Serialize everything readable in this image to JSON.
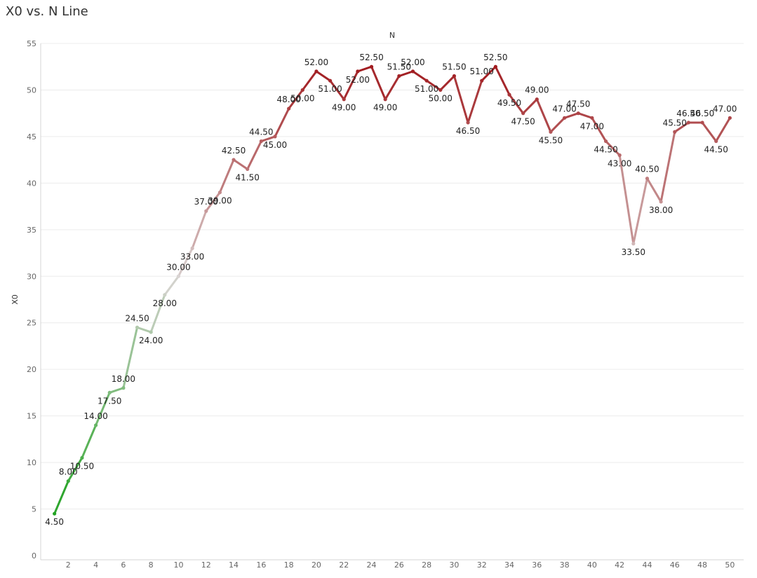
{
  "chart_data": {
    "type": "line",
    "title": "X0 vs. N Line",
    "xlabel": "N",
    "ylabel": "X0",
    "x": [
      1,
      2,
      3,
      4,
      5,
      6,
      7,
      8,
      9,
      10,
      11,
      12,
      13,
      14,
      15,
      16,
      17,
      18,
      19,
      20,
      21,
      22,
      23,
      24,
      25,
      26,
      27,
      28,
      29,
      30,
      31,
      32,
      33,
      34,
      35,
      36,
      37,
      38,
      39,
      40,
      41,
      42,
      43,
      44,
      45,
      46,
      47,
      48,
      49,
      50
    ],
    "series": [
      {
        "values": [
          4.5,
          8.0,
          10.5,
          14.0,
          17.5,
          18.0,
          24.5,
          24.0,
          28.0,
          30.0,
          33.0,
          37.0,
          39.0,
          42.5,
          41.5,
          44.5,
          45.0,
          48.0,
          50.0,
          52.0,
          51.0,
          49.0,
          52.0,
          52.5,
          49.0,
          51.5,
          52.0,
          51.0,
          50.0,
          51.5,
          46.5,
          51.0,
          52.5,
          49.5,
          47.5,
          49.0,
          45.5,
          47.0,
          47.5,
          47.0,
          44.5,
          43.0,
          33.5,
          40.5,
          38.0,
          45.5,
          46.5,
          46.5,
          44.5,
          47.0
        ],
        "data_labels": [
          "4.50",
          "8.00",
          "10.50",
          "14.00",
          "17.50",
          "18.00",
          "24.50",
          "24.00",
          "28.00",
          "30.00",
          "33.00",
          "37.00",
          "39.00",
          "42.50",
          "41.50",
          "44.50",
          "45.00",
          "48.00",
          "50.00",
          "52.00",
          "51.00",
          "49.00",
          "52.00",
          "52.50",
          "49.00",
          "51.50",
          "52.00",
          "51.00",
          "50.00",
          "51.50",
          "46.50",
          "51.00",
          "52.50",
          "49.50",
          "47.50",
          "49.00",
          "45.50",
          "47.00",
          "47.50",
          "47.00",
          "44.50",
          "43.00",
          "33.50",
          "40.50",
          "38.00",
          "45.50",
          "46.50",
          "46.50",
          "44.50",
          "47.00"
        ]
      }
    ],
    "xlim": [
      0,
      51
    ],
    "ylim": [
      0,
      55
    ],
    "x_ticks": [
      2,
      4,
      6,
      8,
      10,
      12,
      14,
      16,
      18,
      20,
      22,
      24,
      26,
      28,
      30,
      32,
      34,
      36,
      38,
      40,
      42,
      44,
      46,
      48,
      50
    ],
    "y_ticks": [
      0,
      5,
      10,
      15,
      20,
      25,
      30,
      35,
      40,
      45,
      50,
      55
    ],
    "grid": true,
    "color_scale": {
      "low": "#22a323",
      "mid": "#d9d4d3",
      "high": "#a11b1f",
      "low_value": 4.5,
      "mid_value": 30,
      "high_value": 52.5
    }
  }
}
